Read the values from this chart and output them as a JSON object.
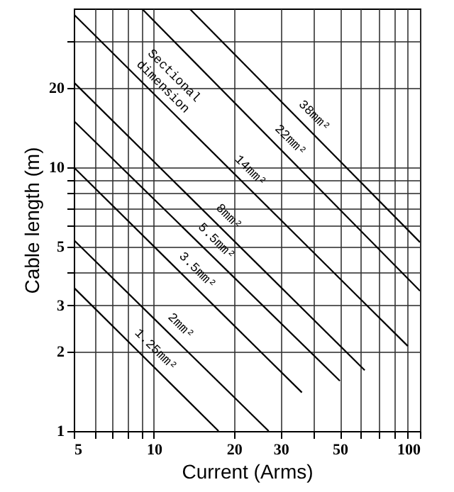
{
  "chart_data": {
    "type": "line",
    "xlabel": "Current (Arms)",
    "ylabel": "Cable length (m)",
    "log": "xy",
    "grid": true,
    "xlim": [
      5,
      100
    ],
    "ylim": [
      1,
      40
    ],
    "xticks": [
      5,
      {
        "value": 6,
        "label": null
      },
      {
        "value": 7,
        "label": null
      },
      {
        "value": 8,
        "label": null
      },
      {
        "value": 9,
        "label": null
      },
      10,
      20,
      30,
      {
        "value": 40,
        "label": null
      },
      50,
      {
        "value": 60,
        "label": null
      },
      {
        "value": 70,
        "label": null
      },
      {
        "value": 80,
        "label": null
      },
      {
        "value": 90,
        "label": null
      },
      100
    ],
    "yticks": [
      1,
      2,
      3,
      {
        "value": 4,
        "label": null
      },
      5,
      {
        "value": 6,
        "label": null
      },
      {
        "value": 7,
        "label": null
      },
      {
        "value": 8,
        "label": null
      },
      {
        "value": 9,
        "label": null
      },
      10,
      20,
      {
        "value": 30,
        "label": null
      }
    ],
    "annotations": [
      "Sectional dimension"
    ],
    "series": [
      {
        "name": "1.25mm²",
        "color": "#000000",
        "x": [
          5,
          17.5
        ],
        "values": [
          3.5,
          1
        ]
      },
      {
        "name": "2mm²",
        "color": "#000000",
        "x": [
          5,
          27
        ],
        "values": [
          5.3,
          1
        ]
      },
      {
        "name": "3.5mm²",
        "color": "#000000",
        "x": [
          5,
          36
        ],
        "values": [
          10,
          1.4
        ]
      },
      {
        "name": "5.5mm²",
        "color": "#000000",
        "x": [
          5,
          50
        ],
        "values": [
          15,
          1.55
        ]
      },
      {
        "name": "8mm²",
        "color": "#000000",
        "x": [
          5,
          62
        ],
        "values": [
          21,
          1.7
        ]
      },
      {
        "name": "14mm²",
        "color": "#000000",
        "x": [
          5,
          90
        ],
        "values": [
          38,
          2.1
        ]
      },
      {
        "name": "22mm²",
        "color": "#000000",
        "x": [
          9,
          100
        ],
        "values": [
          40,
          3.4
        ]
      },
      {
        "name": "38mm²",
        "color": "#000000",
        "x": [
          13.6,
          100
        ],
        "values": [
          40,
          5.2
        ]
      }
    ]
  }
}
